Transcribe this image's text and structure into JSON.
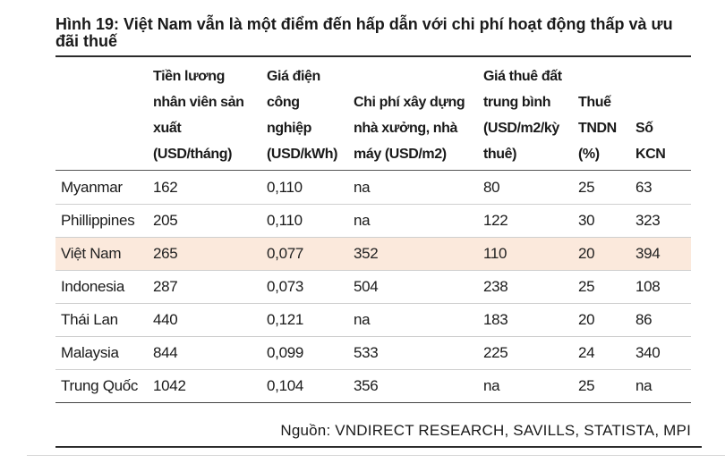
{
  "title": "Hình 19: Việt Nam vẫn là một điểm đến hấp dẫn với chi phí hoạt động thấp và ưu đãi thuế",
  "table": {
    "headers": [
      "",
      "Tiền lương\nnhân viên sản\nxuất\n(USD/tháng)",
      "Giá điện\ncông\nnghiệp\n(USD/kWh)",
      "Chi phí xây dựng\nnhà xưởng, nhà\nmáy (USD/m2)",
      "Giá thuê đất\ntrung bình\n(USD/m2/kỳ\nthuê)",
      "Thuế\nTNDN\n(%)",
      "Số\nKCN"
    ],
    "rows": [
      {
        "country": "Myanmar",
        "wage": "162",
        "electricity": "0,110",
        "construction": "na",
        "land": "80",
        "tax": "25",
        "zones": "63"
      },
      {
        "country": "Phillippines",
        "wage": "205",
        "electricity": "0,110",
        "construction": "na",
        "land": "122",
        "tax": "30",
        "zones": "323"
      },
      {
        "country": "Việt Nam",
        "wage": "265",
        "electricity": "0,077",
        "construction": "352",
        "land": "110",
        "tax": "20",
        "zones": "394"
      },
      {
        "country": "Indonesia",
        "wage": "287",
        "electricity": "0,073",
        "construction": "504",
        "land": "238",
        "tax": "25",
        "zones": "108"
      },
      {
        "country": "Thái Lan",
        "wage": "440",
        "electricity": "0,121",
        "construction": "na",
        "land": "183",
        "tax": "20",
        "zones": "86"
      },
      {
        "country": "Malaysia",
        "wage": "844",
        "electricity": "0,099",
        "construction": "533",
        "land": "225",
        "tax": "24",
        "zones": "340"
      },
      {
        "country": "Trung Quốc",
        "wage": "1042",
        "electricity": "0,104",
        "construction": "356",
        "land": "na",
        "tax": "25",
        "zones": "na"
      }
    ],
    "highlight_row": 2,
    "highlight_color": "#fbe9dc"
  },
  "source": "Nguồn: VNDIRECT RESEARCH, SAVILLS, STATISTA, MPI"
}
